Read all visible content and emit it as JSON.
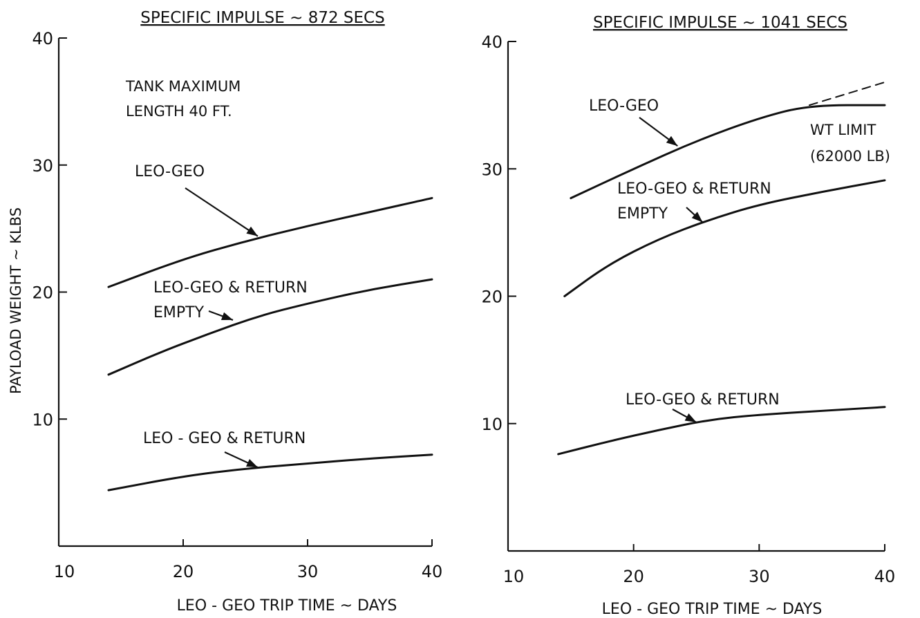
{
  "chart_data": [
    {
      "type": "line",
      "title": "SPECIFIC IMPULSE ~ 872 SECS",
      "xlabel": "LEO - GEO TRIP TIME ~ DAYS",
      "ylabel": "PAYLOAD WEIGHT ~ KLBS",
      "xlim": [
        10,
        40
      ],
      "ylim": [
        0,
        40
      ],
      "xticks": [
        10,
        20,
        30,
        40
      ],
      "yticks": [
        10,
        20,
        30,
        40
      ],
      "grid": false,
      "note": [
        "TANK MAXIMUM",
        "LENGTH 40 FT."
      ],
      "series": [
        {
          "name": "LEO-GEO",
          "x": [
            14,
            20,
            25,
            30,
            35,
            40
          ],
          "y": [
            20.4,
            22.6,
            24.0,
            25.2,
            26.3,
            27.4
          ]
        },
        {
          "name": "LEO-GEO & RETURN EMPTY",
          "x": [
            14,
            18,
            22,
            26,
            30,
            35,
            40
          ],
          "y": [
            13.5,
            15.2,
            16.7,
            18.1,
            19.1,
            20.2,
            21.0
          ]
        },
        {
          "name": "LEO - GEO & RETURN",
          "x": [
            14,
            20,
            25,
            30,
            35,
            40
          ],
          "y": [
            4.4,
            5.5,
            6.1,
            6.5,
            6.9,
            7.2
          ]
        }
      ],
      "annotations": [
        {
          "text": "LEO-GEO",
          "x": 26,
          "y": 24.4
        },
        {
          "text": "LEO-GEO & RETURN EMPTY",
          "x": 24,
          "y": 17.8
        },
        {
          "text": "LEO - GEO & RETURN",
          "x": 26,
          "y": 6.2
        }
      ]
    },
    {
      "type": "line",
      "title": "SPECIFIC IMPULSE ~ 1041 SECS",
      "xlabel": "LEO - GEO TRIP TIME ~ DAYS",
      "ylabel": "",
      "xlim": [
        10,
        40
      ],
      "ylim": [
        0,
        40
      ],
      "xticks": [
        10,
        20,
        30,
        40
      ],
      "yticks": [
        10,
        20,
        30,
        40
      ],
      "grid": false,
      "limit_label": [
        "WT LIMIT",
        "(62000 LB)"
      ],
      "series": [
        {
          "name": "LEO-GEO",
          "x": [
            15,
            20,
            25,
            30,
            34,
            40
          ],
          "y": [
            27.7,
            30.0,
            32.2,
            34.0,
            35.0,
            35.0
          ]
        },
        {
          "name": "LEO-GEO (above WT LIMIT)",
          "dashed": true,
          "x": [
            34,
            37,
            40
          ],
          "y": [
            35.0,
            35.9,
            36.8
          ]
        },
        {
          "name": "LEO-GEO & RETURN EMPTY",
          "x": [
            14.5,
            18,
            22,
            26,
            30,
            35,
            40
          ],
          "y": [
            20.0,
            22.5,
            24.5,
            26.0,
            27.2,
            28.2,
            29.1
          ]
        },
        {
          "name": "LEO-GEO & RETURN",
          "x": [
            14,
            18,
            22,
            26,
            30,
            35,
            40
          ],
          "y": [
            7.6,
            8.6,
            9.5,
            10.3,
            10.7,
            11.0,
            11.3
          ]
        }
      ],
      "annotations": [
        {
          "text": "LEO-GEO",
          "x": 23.5,
          "y": 31.8
        },
        {
          "text": "LEO-GEO & RETURN EMPTY",
          "x": 25.5,
          "y": 25.8
        },
        {
          "text": "LEO-GEO & RETURN",
          "x": 25,
          "y": 10.1
        }
      ]
    }
  ]
}
